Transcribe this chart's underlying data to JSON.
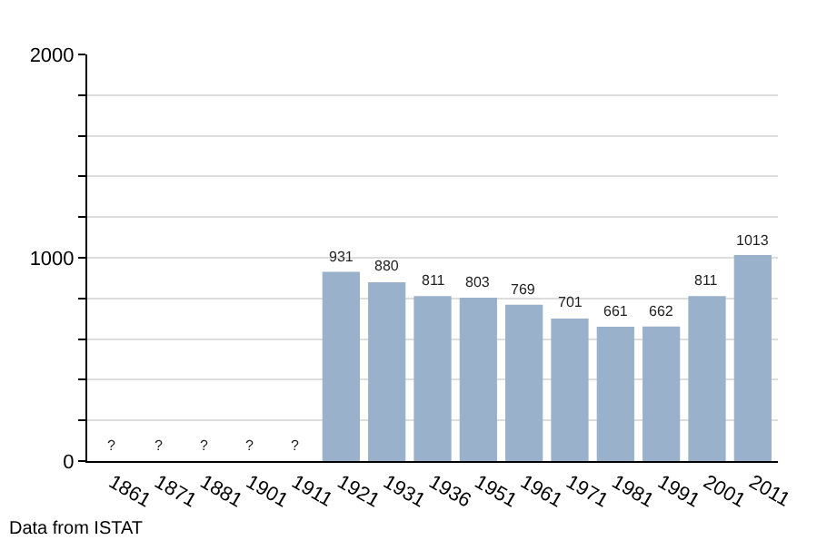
{
  "chart_data": {
    "type": "bar",
    "categories": [
      "1861",
      "1871",
      "1881",
      "1901",
      "1911",
      "1921",
      "1931",
      "1936",
      "1951",
      "1961",
      "1971",
      "1981",
      "1991",
      "2001",
      "2011"
    ],
    "values": [
      null,
      null,
      null,
      null,
      null,
      931,
      880,
      811,
      803,
      769,
      701,
      661,
      662,
      811,
      1013
    ],
    "value_labels": [
      "?",
      "?",
      "?",
      "?",
      "?",
      "931",
      "880",
      "811",
      "803",
      "769",
      "701",
      "661",
      "662",
      "811",
      "1013"
    ],
    "color": "#9ab1cb",
    "ylim": [
      0,
      2000
    ],
    "yticks": [
      0,
      {
        "value": 200,
        "label": null
      },
      {
        "value": 400,
        "label": null
      },
      {
        "value": 600,
        "label": null
      },
      {
        "value": 800,
        "label": null
      },
      1000,
      {
        "value": 1200,
        "label": null
      },
      {
        "value": 1400,
        "label": null
      },
      {
        "value": 1600,
        "label": null
      },
      {
        "value": 1800,
        "label": null
      },
      2000
    ],
    "grid": "y",
    "annotations": [
      "Data from ISTAT"
    ]
  }
}
